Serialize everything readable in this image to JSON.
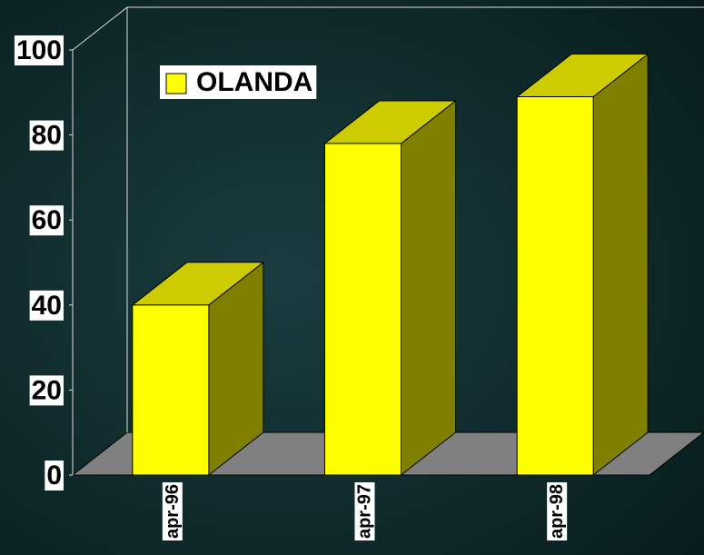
{
  "chart_data": {
    "type": "bar3d",
    "categories": [
      "apr-96",
      "apr-97",
      "apr-98"
    ],
    "series": [
      {
        "name": "OLANDA",
        "color": "#ffff00",
        "values": [
          40,
          78,
          89
        ]
      }
    ],
    "ylim": [
      0,
      100
    ],
    "yticks": [
      0,
      20,
      40,
      60,
      80,
      100
    ]
  }
}
